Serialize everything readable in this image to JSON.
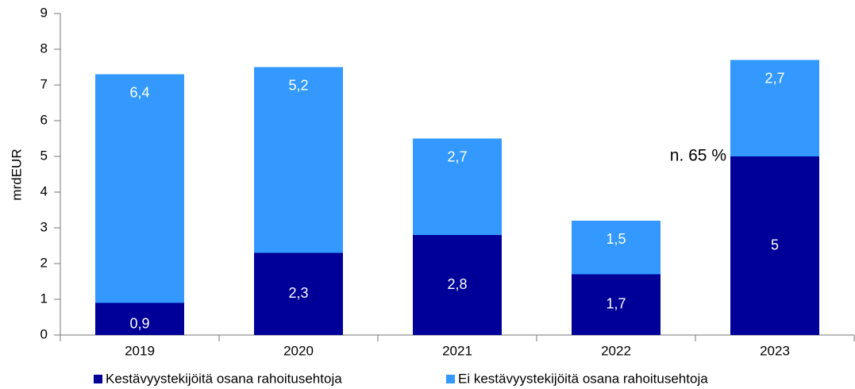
{
  "chart_data": {
    "type": "bar",
    "stacked": true,
    "y_label": "mrdEUR",
    "annotation": "n. 65 %",
    "categories": [
      "2019",
      "2020",
      "2021",
      "2022",
      "2023"
    ],
    "series": [
      {
        "name": "Kestävyystekijöitä osana rahoitusehtoja",
        "color": "#000099",
        "values": [
          0.9,
          2.3,
          2.8,
          1.7,
          5
        ],
        "value_labels": [
          "0,9",
          "2,3",
          "2,8",
          "1,7",
          "5"
        ]
      },
      {
        "name": "Ei kestävyystekijöitä osana rahoitusehtoja",
        "color": "#3399ff",
        "values": [
          6.4,
          5.2,
          2.7,
          1.5,
          2.7
        ],
        "value_labels": [
          "6,4",
          "5,2",
          "2,7",
          "1,5",
          "2,7"
        ]
      }
    ],
    "ylim": [
      0,
      9
    ],
    "yticks": [
      0,
      1,
      2,
      3,
      4,
      5,
      6,
      7,
      8,
      9
    ],
    "grid": false
  }
}
